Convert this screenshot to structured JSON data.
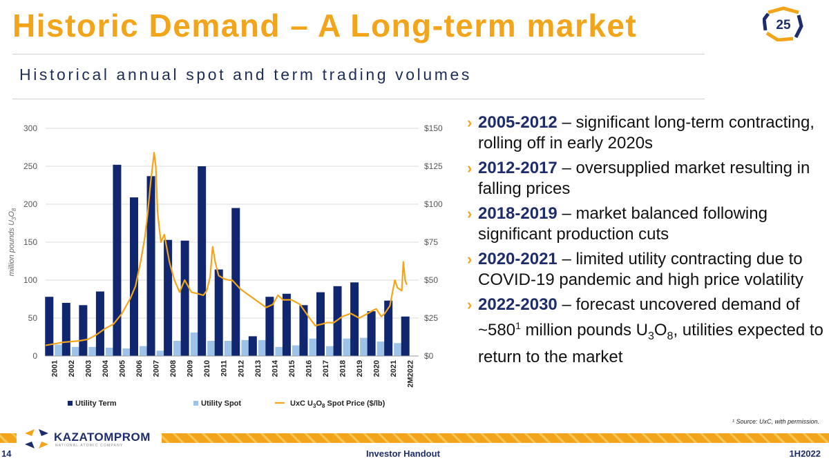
{
  "header": {
    "title": "Historic Demand – A Long-term market",
    "subtitle": "Historical annual spot and term trading volumes",
    "badge": "25"
  },
  "bullets": [
    {
      "years": "2005-2012",
      "text": " – significant long-term contracting, rolling off in early 2020s"
    },
    {
      "years": "2012-2017",
      "text": " – oversupplied market resulting in falling prices"
    },
    {
      "years": "2018-2019",
      "text": " – market balanced following significant production cuts"
    },
    {
      "years": "2020-2021",
      "text": " – limited utility contracting due to COVID-19 pandemic and high price volatility"
    },
    {
      "years": "2022-2030",
      "text_a": " – forecast uncovered demand of ~580",
      "sup": "1",
      "text_b": " million pounds U",
      "sub3": "3",
      "text_c": "O",
      "sub8": "8",
      "text_d": ", utilities expected to return to the market"
    }
  ],
  "footnote": "¹ Source: UxC, with permission.",
  "footer": {
    "page": "14",
    "center": "Investor Handout",
    "period": "1H2022",
    "company": "KAZATOMPROM",
    "company_sub": "NATIONAL ATOMIC COMPANY"
  },
  "colors": {
    "accent": "#F2A51A",
    "navy": "#1d2d6b",
    "term_bar": "#10266E",
    "spot_bar": "#9EC3E8",
    "price_line": "#F2A51A"
  },
  "chart_data": {
    "type": "bar",
    "categories": [
      "2001",
      "2002",
      "2003",
      "2004",
      "2005",
      "2006",
      "2007",
      "2008",
      "2009",
      "2010",
      "2011",
      "2012",
      "2013",
      "2014",
      "2015",
      "2016",
      "2017",
      "2018",
      "2019",
      "2020",
      "2021",
      "2M2022"
    ],
    "series": [
      {
        "name": "Utility Term",
        "axis": "left",
        "values": [
          78,
          70,
          67,
          85,
          252,
          209,
          237,
          153,
          152,
          250,
          114,
          195,
          26,
          78,
          82,
          67,
          84,
          92,
          97,
          59,
          73,
          52
        ]
      },
      {
        "name": "Utility Spot",
        "axis": "left",
        "values": [
          15,
          12,
          12,
          11,
          10,
          13,
          7,
          20,
          31,
          20,
          20,
          21,
          21,
          12,
          14,
          23,
          13,
          23,
          24,
          19,
          17,
          0
        ]
      }
    ],
    "line": {
      "name": "UxC U3O8 Spot Price ($/lb)",
      "axis": "right",
      "t": [
        2001.0,
        2001.5,
        2002.0,
        2002.5,
        2003.0,
        2003.5,
        2004.0,
        2004.5,
        2005.0,
        2005.5,
        2006.0,
        2006.3,
        2006.6,
        2006.85,
        2007.0,
        2007.2,
        2007.4,
        2007.5,
        2007.6,
        2007.8,
        2008.0,
        2008.3,
        2008.6,
        2008.9,
        2009.2,
        2009.6,
        2010.0,
        2010.3,
        2010.5,
        2010.7,
        2010.85,
        2011.0,
        2011.2,
        2011.5,
        2011.8,
        2012.0,
        2012.5,
        2013.0,
        2013.5,
        2014.0,
        2014.4,
        2014.7,
        2015.0,
        2015.5,
        2016.0,
        2016.5,
        2016.9,
        2017.3,
        2017.6,
        2018.0,
        2018.5,
        2019.0,
        2019.5,
        2020.0,
        2020.3,
        2020.5,
        2020.8,
        2021.0,
        2021.3,
        2021.6,
        2021.75,
        2022.0,
        2022.1,
        2022.2,
        2022.3
      ],
      "values": [
        7,
        8,
        9,
        9.5,
        10,
        11,
        14,
        18,
        21,
        28,
        38,
        46,
        62,
        78,
        92,
        115,
        134,
        125,
        95,
        75,
        80,
        62,
        50,
        42,
        50,
        42,
        41,
        40,
        43,
        52,
        72,
        62,
        53,
        51,
        50,
        50,
        44,
        40,
        36,
        32,
        34,
        40,
        37,
        37,
        34,
        26,
        20,
        21,
        22,
        22,
        26,
        28,
        25,
        28,
        30,
        31,
        26,
        28,
        33,
        50,
        45,
        43,
        62,
        50,
        47
      ]
    },
    "title": "",
    "ylabel": "million pounds U3O8",
    "y2label": "",
    "ylim": [
      0,
      300
    ],
    "yticks": [
      0,
      50,
      100,
      150,
      200,
      250,
      300
    ],
    "y2lim": [
      0,
      150
    ],
    "y2ticks": [
      "$0",
      "$25",
      "$50",
      "$75",
      "$100",
      "$125",
      "$150"
    ],
    "legend": [
      {
        "label": "Utility Term"
      },
      {
        "label": "Utility Spot"
      },
      {
        "label_a": "UxC U",
        "sub_a": "3",
        "label_b": "O",
        "sub_b": "8",
        "label_c": " Spot Price ($/lb)"
      }
    ],
    "legend_position": "bottom",
    "grid": true
  }
}
